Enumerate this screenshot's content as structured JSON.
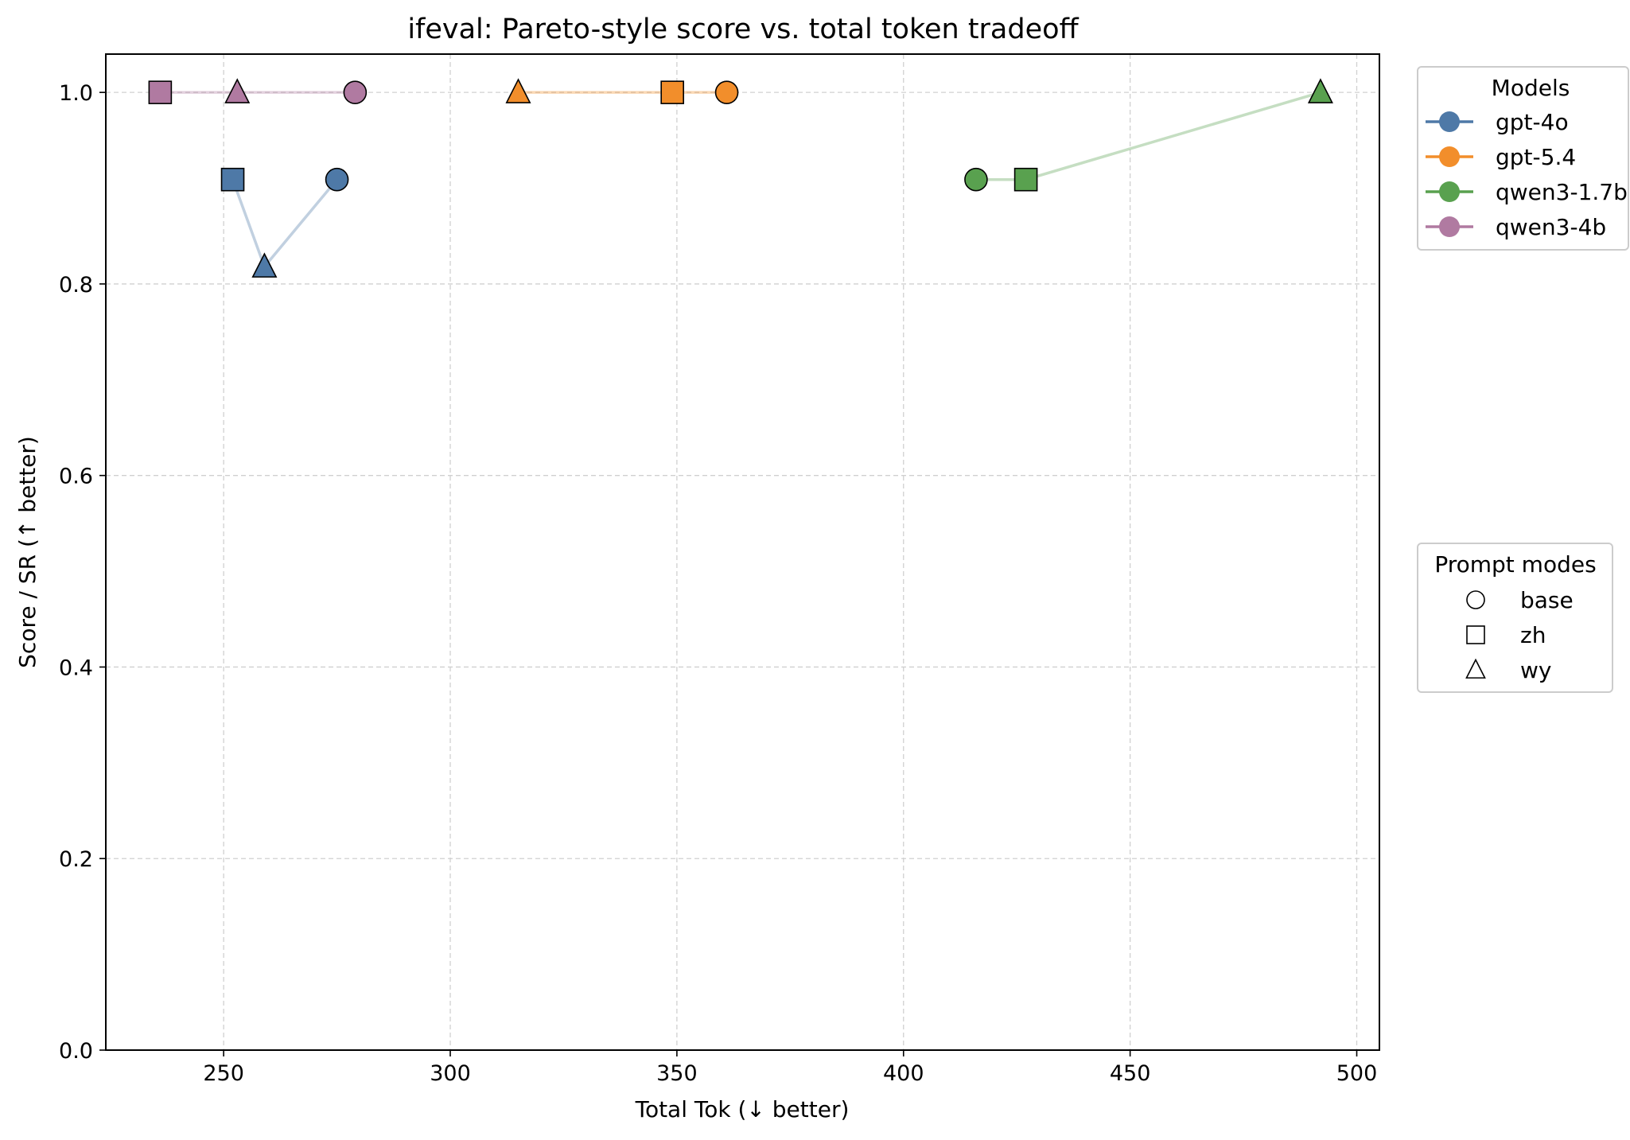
{
  "chart_data": {
    "type": "scatter",
    "title": "ifeval: Pareto-style score vs. total token tradeoff",
    "xlabel": "Total Tok (↓ better)",
    "ylabel": "Score / SR (↑ better)",
    "xlim": [
      224,
      505
    ],
    "ylim": [
      0.0,
      1.04
    ],
    "xticks": [
      250,
      300,
      350,
      400,
      450,
      500
    ],
    "yticks": [
      0.0,
      0.2,
      0.4,
      0.6,
      0.8,
      1.0
    ],
    "xtick_labels": [
      "250",
      "300",
      "350",
      "400",
      "450",
      "500"
    ],
    "ytick_labels": [
      "0.0",
      "0.2",
      "0.4",
      "0.6",
      "0.8",
      "1.0"
    ],
    "grid": true,
    "series": [
      {
        "name": "gpt-4o",
        "color": "#4e79a7",
        "points": [
          {
            "mode": "base",
            "x": 275,
            "y": 0.909
          },
          {
            "mode": "zh",
            "x": 252,
            "y": 0.909
          },
          {
            "mode": "wy",
            "x": 259,
            "y": 0.818
          }
        ]
      },
      {
        "name": "gpt-5.4",
        "color": "#f28e2b",
        "points": [
          {
            "mode": "base",
            "x": 361,
            "y": 1.0
          },
          {
            "mode": "zh",
            "x": 349,
            "y": 1.0
          },
          {
            "mode": "wy",
            "x": 315,
            "y": 1.0
          }
        ]
      },
      {
        "name": "qwen3-1.7b",
        "color": "#59a14f",
        "points": [
          {
            "mode": "base",
            "x": 416,
            "y": 0.909
          },
          {
            "mode": "zh",
            "x": 427,
            "y": 0.909
          },
          {
            "mode": "wy",
            "x": 492,
            "y": 1.0
          }
        ]
      },
      {
        "name": "qwen3-4b",
        "color": "#b07aa1",
        "points": [
          {
            "mode": "base",
            "x": 279,
            "y": 1.0
          },
          {
            "mode": "zh",
            "x": 236,
            "y": 1.0
          },
          {
            "mode": "wy",
            "x": 253,
            "y": 1.0
          }
        ]
      }
    ],
    "legends": {
      "models": {
        "title": "Models",
        "placement": "top-right outside",
        "entries": [
          "gpt-4o",
          "gpt-5.4",
          "qwen3-1.7b",
          "qwen3-4b"
        ]
      },
      "modes": {
        "title": "Prompt modes",
        "placement": "right outside",
        "entries": [
          {
            "label": "base",
            "marker": "circle"
          },
          {
            "label": "zh",
            "marker": "square"
          },
          {
            "label": "wy",
            "marker": "triangle"
          }
        ]
      }
    }
  }
}
